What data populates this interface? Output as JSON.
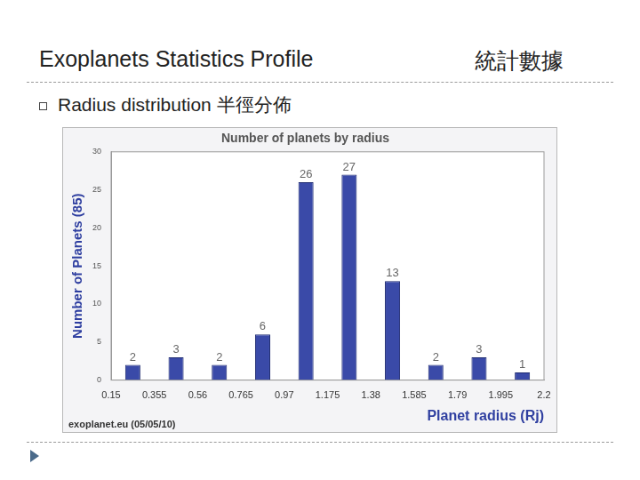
{
  "page": {
    "title": "Exoplanets Statistics Profile",
    "title_zh": "統計數據",
    "bullet": "Radius distribution 半徑分佈"
  },
  "chart_data": {
    "type": "histogram",
    "title": "Number of planets by radius",
    "ylabel": "Number of Planets (85)",
    "xlabel": "Planet radius (Rj)",
    "source": "exoplanet.eu (05/05/10)",
    "bins": [
      0.15,
      0.355,
      0.56,
      0.765,
      0.97,
      1.175,
      1.38,
      1.585,
      1.79,
      1.995,
      2.2
    ],
    "values": [
      2,
      3,
      2,
      6,
      26,
      27,
      13,
      2,
      3,
      1
    ],
    "color": "#3a4aa8",
    "xlim": [
      0.15,
      2.2
    ],
    "xticks": [
      0.15,
      0.355,
      0.56,
      0.765,
      0.97,
      1.175,
      1.38,
      1.585,
      1.79,
      1.995,
      2.2
    ],
    "ylim": [
      0,
      30
    ],
    "yticks": [
      0,
      5,
      10,
      15,
      20,
      25,
      30
    ],
    "grid": false,
    "data_labels": true
  }
}
